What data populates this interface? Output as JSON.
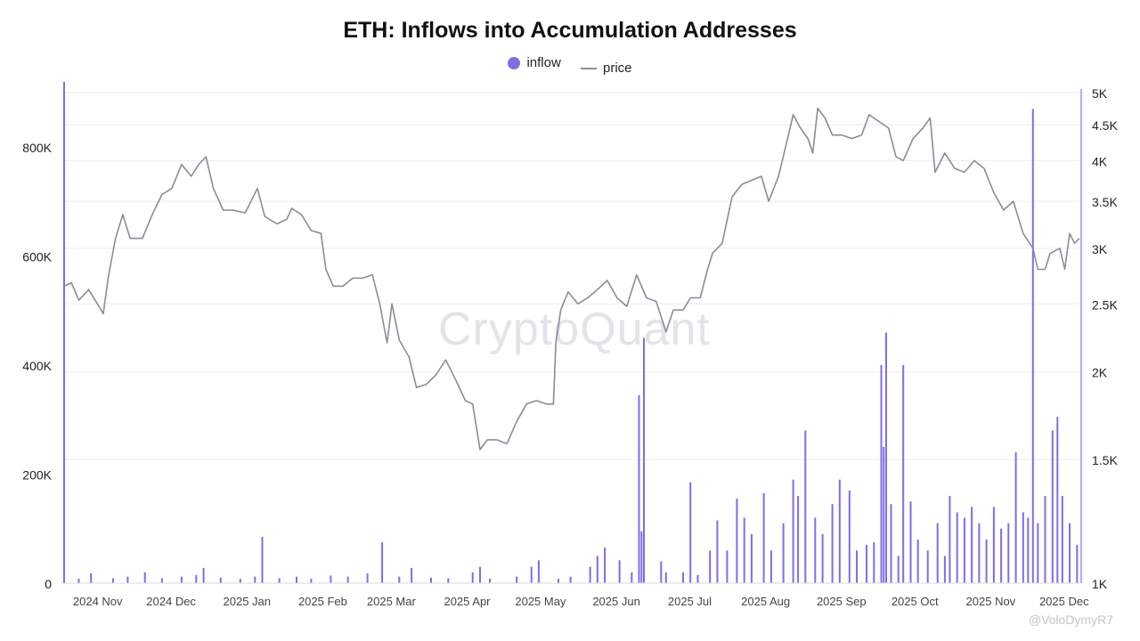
{
  "chart": {
    "title": "ETH: Inflows into Accumulation Addresses",
    "legend": {
      "inflow": "inflow",
      "price": "price"
    }
  },
  "watermark": "CryptoQuant",
  "footer_text": "@VoloDymyR7",
  "colors": {
    "inflow": "#7d6ee8",
    "price": "#8c8c99",
    "grid": "#eeeeee"
  },
  "chart_data": {
    "type": "bar",
    "title": "ETH: Inflows into Accumulation Addresses",
    "x_range": [
      "2024-10-19",
      "2025-12-08"
    ],
    "x_ticks": [
      "2024 Nov",
      "2024 Dec",
      "2025 Jan",
      "2025 Feb",
      "2025 Mar",
      "2025 Apr",
      "2025 May",
      "2025 Jun",
      "2025 Jul",
      "2025 Aug",
      "2025 Sep",
      "2025 Oct",
      "2025 Nov",
      "2025 Dec"
    ],
    "left_axis": {
      "series": "inflow",
      "ylim": [
        0,
        900000
      ],
      "ticks": [
        0,
        200000,
        400000,
        600000,
        800000
      ],
      "tick_labels": [
        "0",
        "200K",
        "400K",
        "600K",
        "800K"
      ]
    },
    "right_axis": {
      "series": "price",
      "scale": "log",
      "ylim": [
        1000,
        5000
      ],
      "ticks": [
        1000,
        1500,
        2000,
        2500,
        3000,
        3500,
        4000,
        4500,
        5000
      ],
      "tick_labels": [
        "1K",
        "1.5K",
        "2K",
        "2.5K",
        "3K",
        "3.5K",
        "4K",
        "4.5K",
        "5K"
      ]
    },
    "grid": true,
    "legend_position": "top-center",
    "series": [
      {
        "name": "inflow",
        "type": "bar",
        "points": [
          [
            "2024-10-19",
            920000
          ],
          [
            "2024-10-25",
            8000
          ],
          [
            "2024-10-30",
            18000
          ],
          [
            "2024-11-08",
            9000
          ],
          [
            "2024-11-14",
            12000
          ],
          [
            "2024-11-21",
            20000
          ],
          [
            "2024-11-28",
            9000
          ],
          [
            "2024-12-06",
            12000
          ],
          [
            "2024-12-12",
            15000
          ],
          [
            "2024-12-15",
            28000
          ],
          [
            "2024-12-22",
            10000
          ],
          [
            "2024-12-30",
            8000
          ],
          [
            "2025-01-05",
            12000
          ],
          [
            "2025-01-08",
            85000
          ],
          [
            "2025-01-15",
            9000
          ],
          [
            "2025-01-22",
            12000
          ],
          [
            "2025-01-28",
            8000
          ],
          [
            "2025-02-05",
            14000
          ],
          [
            "2025-02-12",
            12000
          ],
          [
            "2025-02-20",
            18000
          ],
          [
            "2025-02-26",
            75000
          ],
          [
            "2025-03-05",
            12000
          ],
          [
            "2025-03-10",
            28000
          ],
          [
            "2025-03-18",
            10000
          ],
          [
            "2025-03-25",
            9000
          ],
          [
            "2025-04-04",
            20000
          ],
          [
            "2025-04-07",
            30000
          ],
          [
            "2025-04-11",
            8000
          ],
          [
            "2025-04-22",
            12000
          ],
          [
            "2025-04-28",
            30000
          ],
          [
            "2025-05-01",
            42000
          ],
          [
            "2025-05-09",
            8000
          ],
          [
            "2025-05-14",
            12000
          ],
          [
            "2025-05-22",
            30000
          ],
          [
            "2025-05-25",
            50000
          ],
          [
            "2025-05-28",
            65000
          ],
          [
            "2025-06-03",
            42000
          ],
          [
            "2025-06-08",
            20000
          ],
          [
            "2025-06-11",
            345000
          ],
          [
            "2025-06-12",
            95000
          ],
          [
            "2025-06-13",
            450000
          ],
          [
            "2025-06-20",
            40000
          ],
          [
            "2025-06-22",
            20000
          ],
          [
            "2025-06-29",
            20000
          ],
          [
            "2025-07-02",
            185000
          ],
          [
            "2025-07-05",
            15000
          ],
          [
            "2025-07-10",
            60000
          ],
          [
            "2025-07-13",
            115000
          ],
          [
            "2025-07-17",
            60000
          ],
          [
            "2025-07-21",
            155000
          ],
          [
            "2025-07-24",
            120000
          ],
          [
            "2025-07-27",
            90000
          ],
          [
            "2025-08-01",
            165000
          ],
          [
            "2025-08-04",
            60000
          ],
          [
            "2025-08-09",
            110000
          ],
          [
            "2025-08-13",
            190000
          ],
          [
            "2025-08-15",
            160000
          ],
          [
            "2025-08-18",
            280000
          ],
          [
            "2025-08-22",
            120000
          ],
          [
            "2025-08-25",
            90000
          ],
          [
            "2025-08-29",
            145000
          ],
          [
            "2025-09-01",
            190000
          ],
          [
            "2025-09-05",
            170000
          ],
          [
            "2025-09-08",
            60000
          ],
          [
            "2025-09-12",
            70000
          ],
          [
            "2025-09-15",
            75000
          ],
          [
            "2025-09-18",
            400000
          ],
          [
            "2025-09-19",
            250000
          ],
          [
            "2025-09-20",
            460000
          ],
          [
            "2025-09-22",
            145000
          ],
          [
            "2025-09-25",
            50000
          ],
          [
            "2025-09-27",
            400000
          ],
          [
            "2025-09-30",
            150000
          ],
          [
            "2025-10-03",
            80000
          ],
          [
            "2025-10-07",
            60000
          ],
          [
            "2025-10-11",
            110000
          ],
          [
            "2025-10-14",
            50000
          ],
          [
            "2025-10-16",
            160000
          ],
          [
            "2025-10-19",
            130000
          ],
          [
            "2025-10-22",
            120000
          ],
          [
            "2025-10-25",
            140000
          ],
          [
            "2025-10-28",
            110000
          ],
          [
            "2025-10-31",
            80000
          ],
          [
            "2025-11-03",
            140000
          ],
          [
            "2025-11-06",
            100000
          ],
          [
            "2025-11-09",
            110000
          ],
          [
            "2025-11-12",
            240000
          ],
          [
            "2025-11-15",
            130000
          ],
          [
            "2025-11-17",
            120000
          ],
          [
            "2025-11-19",
            870000
          ],
          [
            "2025-11-21",
            110000
          ],
          [
            "2025-11-24",
            160000
          ],
          [
            "2025-11-27",
            280000
          ],
          [
            "2025-11-29",
            305000
          ],
          [
            "2025-12-01",
            160000
          ],
          [
            "2025-12-04",
            110000
          ],
          [
            "2025-12-07",
            70000
          ]
        ]
      },
      {
        "name": "price",
        "type": "line",
        "points": [
          [
            "2024-10-19",
            2650
          ],
          [
            "2024-10-22",
            2680
          ],
          [
            "2024-10-25",
            2530
          ],
          [
            "2024-10-29",
            2620
          ],
          [
            "2024-11-01",
            2520
          ],
          [
            "2024-11-04",
            2420
          ],
          [
            "2024-11-06",
            2720
          ],
          [
            "2024-11-09",
            3100
          ],
          [
            "2024-11-12",
            3350
          ],
          [
            "2024-11-15",
            3100
          ],
          [
            "2024-11-20",
            3100
          ],
          [
            "2024-11-24",
            3350
          ],
          [
            "2024-11-28",
            3580
          ],
          [
            "2024-12-02",
            3650
          ],
          [
            "2024-12-06",
            3950
          ],
          [
            "2024-12-10",
            3800
          ],
          [
            "2024-12-13",
            3950
          ],
          [
            "2024-12-16",
            4050
          ],
          [
            "2024-12-19",
            3650
          ],
          [
            "2024-12-23",
            3400
          ],
          [
            "2024-12-27",
            3400
          ],
          [
            "2025-01-01",
            3370
          ],
          [
            "2025-01-06",
            3650
          ],
          [
            "2025-01-09",
            3330
          ],
          [
            "2025-01-14",
            3250
          ],
          [
            "2025-01-18",
            3300
          ],
          [
            "2025-01-20",
            3420
          ],
          [
            "2025-01-24",
            3350
          ],
          [
            "2025-01-28",
            3180
          ],
          [
            "2025-02-01",
            3150
          ],
          [
            "2025-02-03",
            2800
          ],
          [
            "2025-02-06",
            2650
          ],
          [
            "2025-02-10",
            2650
          ],
          [
            "2025-02-14",
            2720
          ],
          [
            "2025-02-18",
            2720
          ],
          [
            "2025-02-22",
            2750
          ],
          [
            "2025-02-25",
            2500
          ],
          [
            "2025-02-28",
            2200
          ],
          [
            "2025-03-02",
            2500
          ],
          [
            "2025-03-05",
            2220
          ],
          [
            "2025-03-09",
            2100
          ],
          [
            "2025-03-12",
            1900
          ],
          [
            "2025-03-16",
            1920
          ],
          [
            "2025-03-20",
            1980
          ],
          [
            "2025-03-24",
            2080
          ],
          [
            "2025-03-28",
            1950
          ],
          [
            "2025-04-01",
            1820
          ],
          [
            "2025-04-04",
            1800
          ],
          [
            "2025-04-07",
            1550
          ],
          [
            "2025-04-10",
            1600
          ],
          [
            "2025-04-14",
            1600
          ],
          [
            "2025-04-18",
            1580
          ],
          [
            "2025-04-22",
            1700
          ],
          [
            "2025-04-26",
            1800
          ],
          [
            "2025-04-30",
            1820
          ],
          [
            "2025-05-04",
            1800
          ],
          [
            "2025-05-07",
            1800
          ],
          [
            "2025-05-08",
            2200
          ],
          [
            "2025-05-10",
            2450
          ],
          [
            "2025-05-13",
            2600
          ],
          [
            "2025-05-17",
            2500
          ],
          [
            "2025-05-21",
            2550
          ],
          [
            "2025-05-25",
            2620
          ],
          [
            "2025-05-29",
            2700
          ],
          [
            "2025-06-02",
            2550
          ],
          [
            "2025-06-06",
            2480
          ],
          [
            "2025-06-10",
            2750
          ],
          [
            "2025-06-14",
            2550
          ],
          [
            "2025-06-18",
            2520
          ],
          [
            "2025-06-22",
            2280
          ],
          [
            "2025-06-25",
            2450
          ],
          [
            "2025-06-29",
            2450
          ],
          [
            "2025-07-02",
            2550
          ],
          [
            "2025-07-06",
            2550
          ],
          [
            "2025-07-09",
            2800
          ],
          [
            "2025-07-11",
            2950
          ],
          [
            "2025-07-15",
            3050
          ],
          [
            "2025-07-19",
            3550
          ],
          [
            "2025-07-23",
            3700
          ],
          [
            "2025-07-27",
            3750
          ],
          [
            "2025-07-31",
            3800
          ],
          [
            "2025-08-03",
            3500
          ],
          [
            "2025-08-07",
            3800
          ],
          [
            "2025-08-10",
            4200
          ],
          [
            "2025-08-13",
            4650
          ],
          [
            "2025-08-16",
            4450
          ],
          [
            "2025-08-19",
            4300
          ],
          [
            "2025-08-21",
            4100
          ],
          [
            "2025-08-23",
            4750
          ],
          [
            "2025-08-26",
            4600
          ],
          [
            "2025-08-29",
            4350
          ],
          [
            "2025-09-02",
            4350
          ],
          [
            "2025-09-06",
            4300
          ],
          [
            "2025-09-10",
            4350
          ],
          [
            "2025-09-13",
            4650
          ],
          [
            "2025-09-17",
            4550
          ],
          [
            "2025-09-21",
            4450
          ],
          [
            "2025-09-24",
            4050
          ],
          [
            "2025-09-27",
            4000
          ],
          [
            "2025-10-01",
            4300
          ],
          [
            "2025-10-05",
            4450
          ],
          [
            "2025-10-08",
            4600
          ],
          [
            "2025-10-10",
            3850
          ],
          [
            "2025-10-14",
            4100
          ],
          [
            "2025-10-18",
            3900
          ],
          [
            "2025-10-22",
            3850
          ],
          [
            "2025-10-26",
            4000
          ],
          [
            "2025-10-30",
            3900
          ],
          [
            "2025-11-03",
            3600
          ],
          [
            "2025-11-07",
            3400
          ],
          [
            "2025-11-11",
            3500
          ],
          [
            "2025-11-15",
            3150
          ],
          [
            "2025-11-19",
            3000
          ],
          [
            "2025-11-21",
            2800
          ],
          [
            "2025-11-24",
            2800
          ],
          [
            "2025-11-26",
            2950
          ],
          [
            "2025-11-30",
            3000
          ],
          [
            "2025-12-02",
            2800
          ],
          [
            "2025-12-04",
            3150
          ],
          [
            "2025-12-06",
            3050
          ],
          [
            "2025-12-08",
            3100
          ]
        ]
      }
    ]
  }
}
